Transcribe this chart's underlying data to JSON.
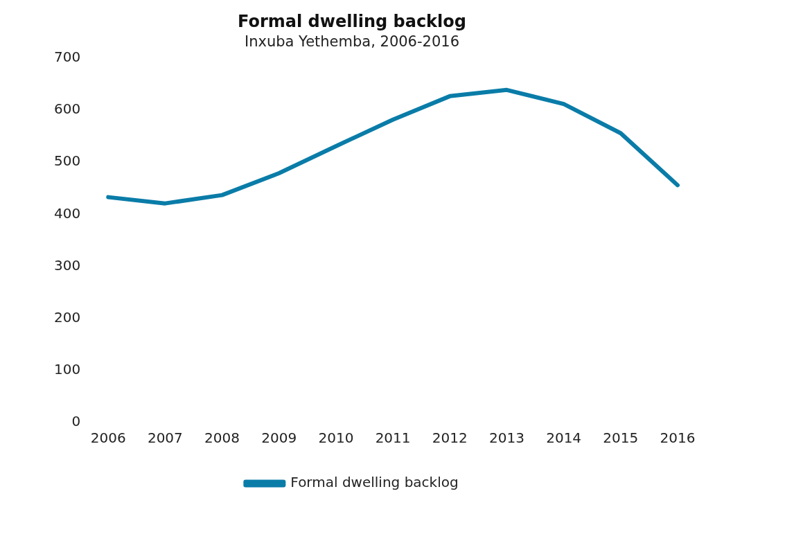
{
  "chart_data": {
    "type": "line",
    "title": "Formal dwelling backlog",
    "subtitle": "Inxuba Yethemba, 2006-2016",
    "categories": [
      "2006",
      "2007",
      "2008",
      "2009",
      "2010",
      "2011",
      "2012",
      "2013",
      "2014",
      "2015",
      "2016"
    ],
    "series": [
      {
        "name": "Formal dwelling backlog",
        "color": "#0a7ca8",
        "values": [
          433,
          421,
          437,
          479,
          531,
          582,
          627,
          639,
          612,
          556,
          456
        ]
      }
    ],
    "ylim": [
      0,
      700
    ],
    "yticks": [
      0,
      100,
      200,
      300,
      400,
      500,
      600,
      700
    ],
    "legend": "bottom",
    "marker": "none"
  }
}
